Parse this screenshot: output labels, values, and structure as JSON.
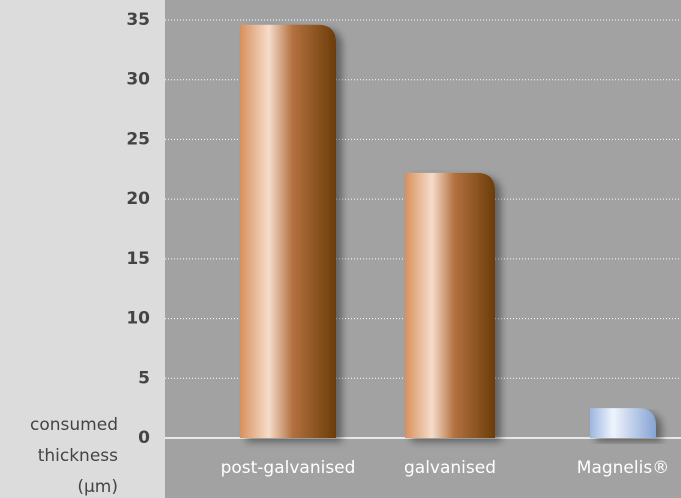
{
  "chart_data": {
    "type": "bar",
    "y_label": "consumed thickness (µm)",
    "categories": [
      "post-galvanised",
      "galvanised",
      "Magnelis®"
    ],
    "values": [
      34.6,
      22.2,
      2.5
    ],
    "colors": [
      "#6b3d08",
      "#6b3d08",
      "#86a3d4"
    ],
    "ylim": [
      0,
      35
    ],
    "yticks": [
      0,
      5,
      10,
      15,
      20,
      25,
      30,
      35
    ],
    "grid": true
  }
}
